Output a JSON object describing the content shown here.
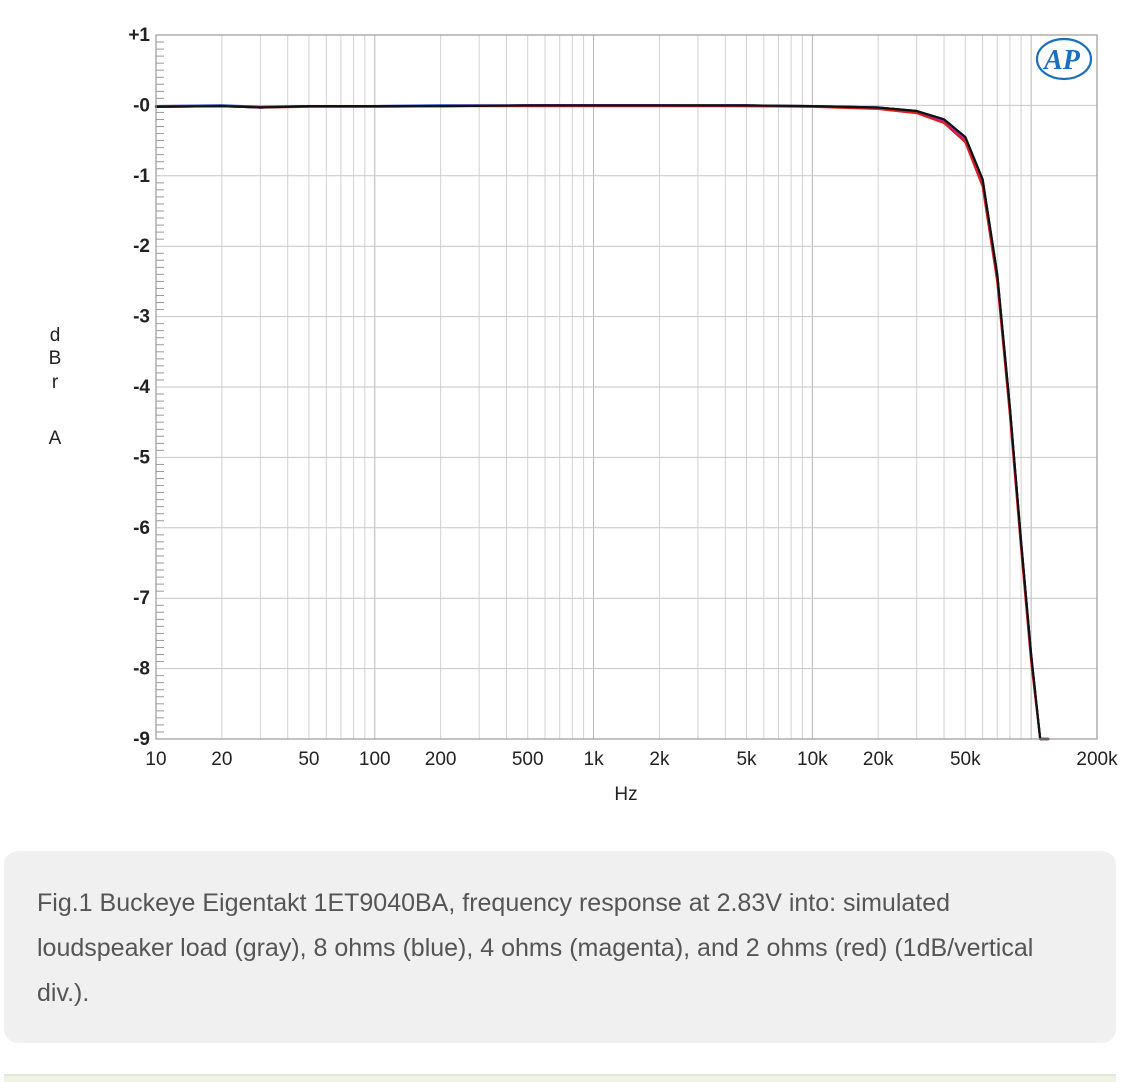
{
  "chart_data": {
    "type": "line",
    "title": "",
    "xlabel": "Hz",
    "ylabel": "dBr A",
    "ylabel_chars": [
      "d",
      "B",
      "r",
      "A"
    ],
    "xscale": "log",
    "xlim": [
      10,
      200000
    ],
    "ylim": [
      -9,
      1
    ],
    "grid": true,
    "x_ticks": [
      {
        "value": 10,
        "label": "10"
      },
      {
        "value": 20,
        "label": "20"
      },
      {
        "value": 50,
        "label": "50"
      },
      {
        "value": 100,
        "label": "100"
      },
      {
        "value": 200,
        "label": "200"
      },
      {
        "value": 500,
        "label": "500"
      },
      {
        "value": 1000,
        "label": "1k"
      },
      {
        "value": 2000,
        "label": "2k"
      },
      {
        "value": 5000,
        "label": "5k"
      },
      {
        "value": 10000,
        "label": "10k"
      },
      {
        "value": 20000,
        "label": "20k"
      },
      {
        "value": 50000,
        "label": "50k"
      },
      {
        "value": 200000,
        "label": "200k"
      }
    ],
    "y_ticks": [
      {
        "value": 1,
        "label": "+1"
      },
      {
        "value": 0,
        "label": "-0"
      },
      {
        "value": -1,
        "label": "-1"
      },
      {
        "value": -2,
        "label": "-2"
      },
      {
        "value": -3,
        "label": "-3"
      },
      {
        "value": -4,
        "label": "-4"
      },
      {
        "value": -5,
        "label": "-5"
      },
      {
        "value": -6,
        "label": "-6"
      },
      {
        "value": -7,
        "label": "-7"
      },
      {
        "value": -8,
        "label": "-8"
      },
      {
        "value": -9,
        "label": "-9"
      }
    ],
    "series": [
      {
        "name": "simulated loudspeaker load",
        "color": "#8c8c8c",
        "x": [
          10,
          20,
          30,
          50,
          100,
          200,
          500,
          1000,
          2000,
          5000,
          10000,
          20000,
          30000,
          40000,
          50000,
          60000,
          70000,
          80000,
          90000,
          100000,
          110000,
          120000
        ],
        "y": [
          -0.02,
          -0.01,
          -0.03,
          -0.01,
          -0.01,
          -0.01,
          0.0,
          0.0,
          0.0,
          0.0,
          -0.01,
          -0.03,
          -0.08,
          -0.2,
          -0.45,
          -1.05,
          -2.4,
          -4.3,
          -6.2,
          -7.8,
          -9.0,
          -9.0
        ]
      },
      {
        "name": "8 ohms",
        "color": "#1f3fbf",
        "x": [
          10,
          20,
          30,
          50,
          100,
          200,
          500,
          1000,
          2000,
          5000,
          10000,
          20000,
          30000,
          40000,
          50000,
          60000,
          70000,
          80000,
          90000,
          100000,
          110000,
          120000
        ],
        "y": [
          -0.01,
          0.0,
          -0.02,
          -0.01,
          -0.01,
          0.0,
          0.0,
          0.0,
          0.0,
          0.0,
          -0.01,
          -0.03,
          -0.08,
          -0.2,
          -0.45,
          -1.05,
          -2.4,
          -4.3,
          -6.2,
          -7.8,
          -9.0,
          -9.0
        ]
      },
      {
        "name": "4 ohms",
        "color": "#c020c0",
        "x": [
          10,
          20,
          30,
          50,
          100,
          200,
          500,
          1000,
          2000,
          5000,
          10000,
          20000,
          30000,
          40000,
          50000,
          60000,
          70000,
          80000,
          90000,
          100000,
          110000,
          120000
        ],
        "y": [
          -0.02,
          -0.01,
          -0.03,
          -0.01,
          -0.01,
          -0.01,
          0.0,
          0.0,
          0.0,
          -0.01,
          -0.01,
          -0.04,
          -0.09,
          -0.22,
          -0.48,
          -1.1,
          -2.45,
          -4.35,
          -6.25,
          -7.85,
          -9.0,
          -9.0
        ]
      },
      {
        "name": "2 ohms",
        "color": "#d82020",
        "x": [
          10,
          20,
          30,
          50,
          100,
          200,
          500,
          1000,
          2000,
          5000,
          10000,
          20000,
          30000,
          40000,
          50000,
          60000,
          70000,
          80000,
          90000,
          100000,
          110000,
          120000
        ],
        "y": [
          -0.02,
          -0.01,
          -0.03,
          -0.02,
          -0.02,
          -0.01,
          -0.01,
          -0.01,
          -0.01,
          -0.01,
          -0.02,
          -0.05,
          -0.11,
          -0.25,
          -0.52,
          -1.15,
          -2.5,
          -4.4,
          -6.3,
          -7.9,
          -9.0,
          -9.0
        ]
      },
      {
        "name": "",
        "color": "#111111",
        "x": [
          10,
          20,
          30,
          50,
          100,
          200,
          500,
          1000,
          2000,
          5000,
          10000,
          20000,
          30000,
          40000,
          50000,
          60000,
          70000,
          80000,
          90000,
          100000,
          110000,
          120000
        ],
        "y": [
          -0.02,
          -0.01,
          -0.03,
          -0.01,
          -0.01,
          -0.01,
          0.0,
          0.0,
          0.0,
          0.0,
          -0.01,
          -0.03,
          -0.08,
          -0.2,
          -0.45,
          -1.05,
          -2.4,
          -4.3,
          -6.2,
          -7.8,
          -9.0,
          -9.0
        ]
      }
    ]
  },
  "logo": {
    "text": "AP",
    "color": "#1a6fc0"
  },
  "caption": {
    "text": "Fig.1 Buckeye Eigentakt 1ET9040BA, frequency response at 2.83V into: simulated loudspeaker load (gray), 8 ohms (blue), 4 ohms (magenta), and 2 ohms (red) (1dB/vertical div.)."
  }
}
